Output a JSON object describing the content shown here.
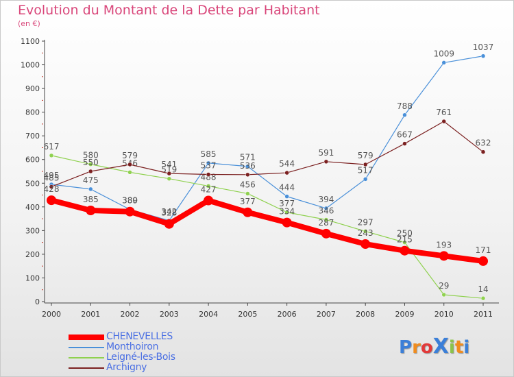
{
  "title": "Evolution du Montant de la Dette par Habitant",
  "unit": "(en €)",
  "logo": {
    "text": "ProXiti",
    "letters": [
      "P",
      "r",
      "o",
      "X",
      "i",
      "t",
      "i"
    ],
    "colors": [
      "#3b7fd8",
      "#f08c1e",
      "#e23a3a",
      "#3b7fd8",
      "#8bc34a",
      "#f08c1e",
      "#3b7fd8"
    ]
  },
  "chart_data": {
    "type": "line",
    "title": "Evolution du Montant de la Dette par Habitant",
    "ylabel": "(en €)",
    "xlabel": "",
    "x": [
      "2000",
      "2001",
      "2002",
      "2003",
      "2004",
      "2005",
      "2006",
      "2007",
      "2008",
      "2009",
      "2010",
      "2011"
    ],
    "ylim": [
      0,
      1100
    ],
    "yticks": [
      0,
      100,
      200,
      300,
      400,
      500,
      600,
      700,
      800,
      900,
      1000,
      1100
    ],
    "grid": false,
    "legend_position": "bottom-left",
    "series": [
      {
        "name": "CHENEVELLES",
        "color": "#ff0000",
        "thick": true,
        "values": [
          428,
          385,
          380,
          328,
          427,
          377,
          334,
          287,
          243,
          215,
          193,
          171
        ]
      },
      {
        "name": "Monthoiron",
        "color": "#4a90d9",
        "thick": false,
        "values": [
          495,
          475,
          389,
          342,
          585,
          571,
          444,
          394,
          517,
          788,
          1009,
          1037
        ]
      },
      {
        "name": "Leigné-les-Bois",
        "color": "#8fd14f",
        "thick": false,
        "values": [
          617,
          580,
          546,
          519,
          488,
          456,
          377,
          346,
          297,
          250,
          29,
          14
        ]
      },
      {
        "name": "Archigny",
        "color": "#7b2020",
        "thick": false,
        "values": [
          485,
          550,
          579,
          541,
          537,
          536,
          544,
          591,
          579,
          667,
          761,
          632
        ]
      }
    ]
  }
}
